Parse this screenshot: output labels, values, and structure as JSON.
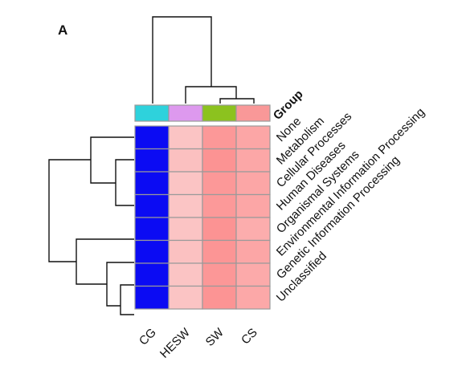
{
  "panel_label": "A",
  "chart_data": {
    "type": "heatmap",
    "title": "",
    "annotation_title": "Group",
    "columns": [
      "CG",
      "HESW",
      "SW",
      "CS"
    ],
    "rows": [
      "None",
      "Metabolism",
      "Cellular Processes",
      "Human Diseases",
      "Organismal Systems",
      "Environmental Information Processing",
      "Genetic Information Processing",
      "Unclassified"
    ],
    "group_colors": [
      "#2ed2dc",
      "#dd99ee",
      "#8cc21f",
      "#f99898"
    ],
    "cell_colors": [
      [
        "#0b0bf3",
        "#fbc4c4",
        "#fc9898",
        "#fca6a6"
      ],
      [
        "#0b0bf3",
        "#fbc0c0",
        "#fc9393",
        "#fca7a7"
      ],
      [
        "#0b0bf3",
        "#fbc4c4",
        "#fc9898",
        "#fca6a6"
      ],
      [
        "#0b0bf3",
        "#fbc5c5",
        "#fc9999",
        "#fca6a6"
      ],
      [
        "#0b0bf3",
        "#fbc4c4",
        "#fc9393",
        "#fcadad"
      ],
      [
        "#0b0bf3",
        "#fbc1c1",
        "#fc9595",
        "#fca6a6"
      ],
      [
        "#0b0bf3",
        "#fbc4c4",
        "#fc9797",
        "#fcaaaa"
      ],
      [
        "#0b0bf3",
        "#fbc4c4",
        "#fc9494",
        "#fca8a8"
      ]
    ]
  }
}
